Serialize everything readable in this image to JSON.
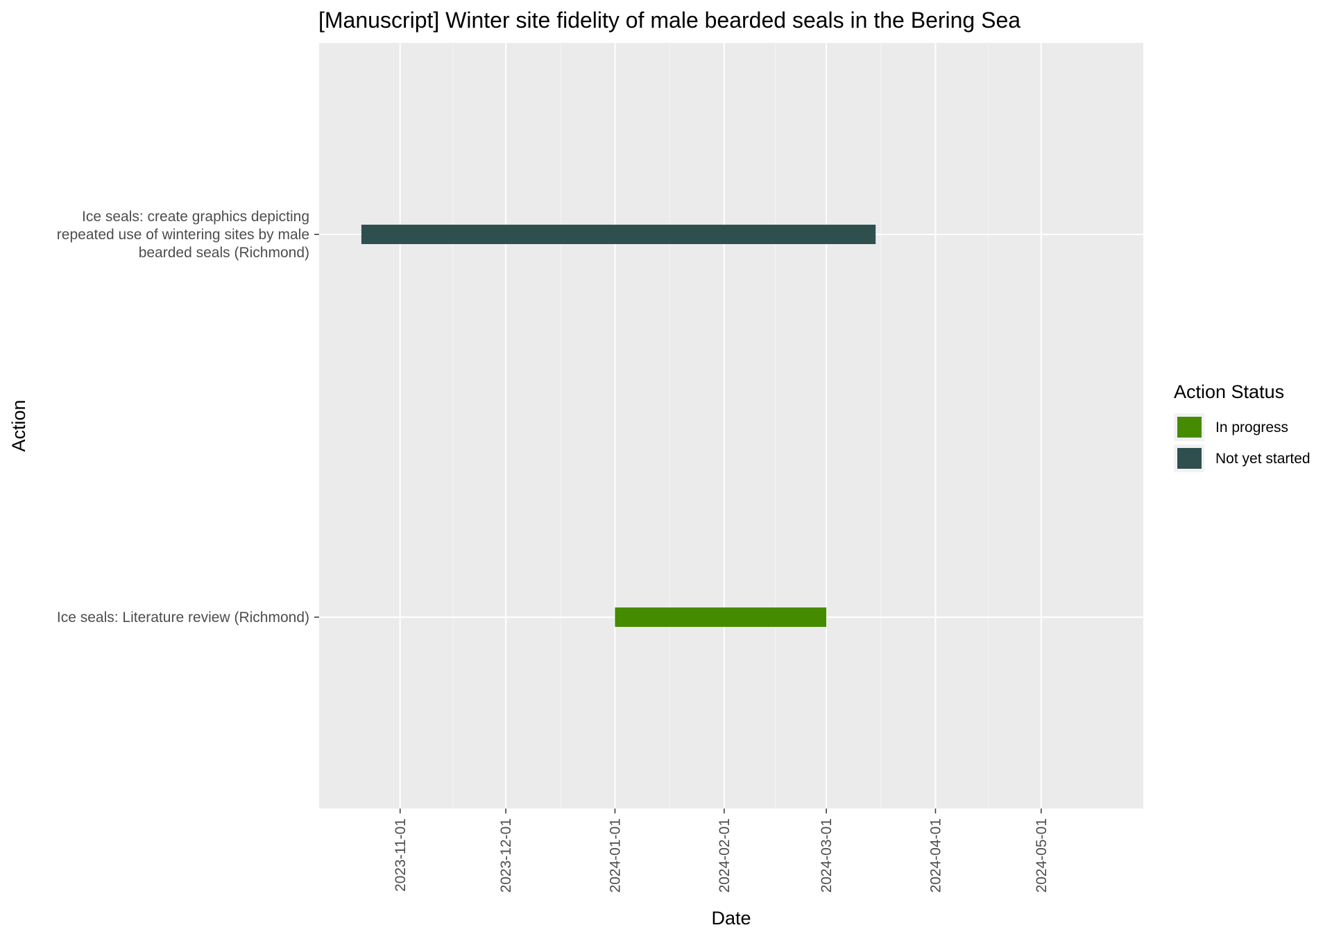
{
  "chart_data": {
    "type": "bar",
    "orientation": "horizontal-gantt",
    "title": "[Manuscript] Winter site fidelity of male bearded seals in the Bering Sea",
    "xlabel": "Date",
    "ylabel": "Action",
    "xlim": [
      "2023-10-09",
      "2024-05-30"
    ],
    "x_ticks": [
      "2023-11-01",
      "2023-12-01",
      "2024-01-01",
      "2024-02-01",
      "2024-03-01",
      "2024-04-01",
      "2024-05-01"
    ],
    "grid": true,
    "legend": {
      "title": "Action Status",
      "placement": "right",
      "entries": [
        {
          "label": "In progress",
          "color": "#458b00"
        },
        {
          "label": "Not yet started",
          "color": "#2f4f4f"
        }
      ]
    },
    "categories": [
      {
        "label_lines": [
          "Ice seals: create graphics depicting",
          "repeated use of wintering sites by male",
          "bearded seals (Richmond)"
        ],
        "start": "2023-10-21",
        "end": "2024-03-15",
        "status": "Not yet started"
      },
      {
        "label_lines": [
          "Ice seals: Literature review (Richmond)"
        ],
        "start": "2024-01-01",
        "end": "2024-03-01",
        "status": "In progress"
      }
    ]
  },
  "colors": {
    "panel_background": "#ebebeb",
    "gridline": "#ffffff",
    "tick_text": "#4d4d4d"
  }
}
